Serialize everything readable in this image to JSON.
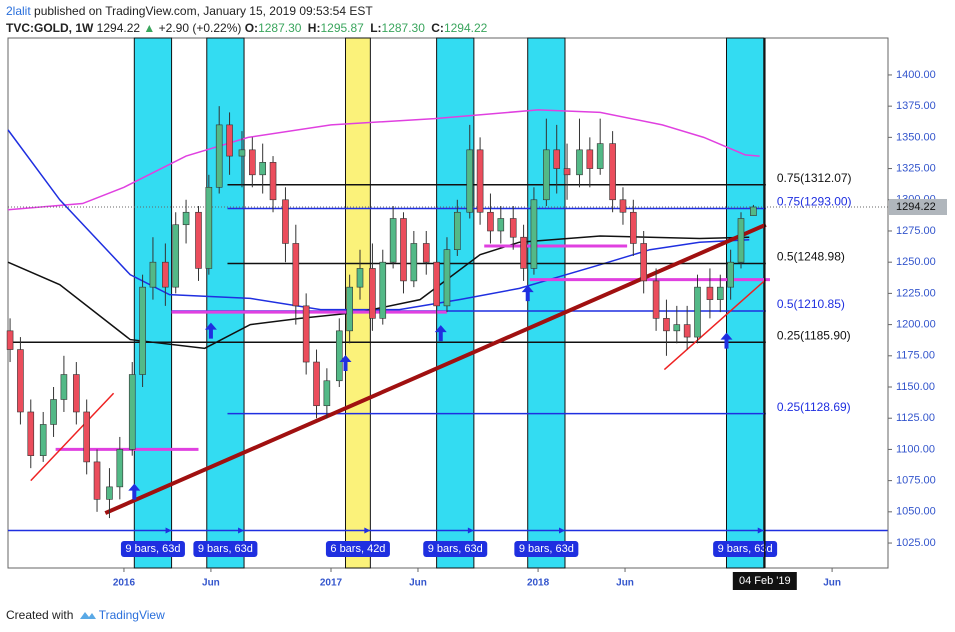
{
  "header": {
    "author": "2lalit",
    "published": "published on TradingView.com, January 15, 2019 09:53:54 EST",
    "symbol": "TVC:GOLD, 1W",
    "last": "1294.22",
    "arrow": "▲",
    "change": "+2.90 (+0.22%)",
    "ohlc": [
      {
        "label": "O:",
        "value": "1287.30"
      },
      {
        "label": "H:",
        "value": "1295.87"
      },
      {
        "label": "L:",
        "value": "1287.30"
      },
      {
        "label": "C:",
        "value": "1294.22"
      }
    ]
  },
  "footer": {
    "created_with": "Created with",
    "brand": "TradingView"
  },
  "chart_data": {
    "type": "candlestick",
    "xlim": [
      2015.44,
      2019.69
    ],
    "ylim": [
      1005,
      1429.6
    ],
    "xticks": [
      {
        "value": 2016,
        "label": "2016"
      },
      {
        "value": 2016.42,
        "label": "Jun"
      },
      {
        "value": 2017,
        "label": "2017"
      },
      {
        "value": 2017.42,
        "label": "Jun"
      },
      {
        "value": 2018,
        "label": "2018"
      },
      {
        "value": 2018.42,
        "label": "Jun"
      },
      {
        "value": 2019.42,
        "label": "Jun"
      }
    ],
    "yticks": [
      {
        "value": 1025,
        "label": "1025.00"
      },
      {
        "value": 1050,
        "label": "1050.00"
      },
      {
        "value": 1075,
        "label": "1075.00"
      },
      {
        "value": 1100,
        "label": "1100.00"
      },
      {
        "value": 1125,
        "label": "1125.00"
      },
      {
        "value": 1150,
        "label": "1150.00"
      },
      {
        "value": 1175,
        "label": "1175.00"
      },
      {
        "value": 1200,
        "label": "1200.00"
      },
      {
        "value": 1225,
        "label": "1225.00"
      },
      {
        "value": 1250,
        "label": "1250.00"
      },
      {
        "value": 1275,
        "label": "1275.00"
      },
      {
        "value": 1300,
        "label": "1300.00"
      },
      {
        "value": 1325,
        "label": "1325.00"
      },
      {
        "value": 1350,
        "label": "1350.00"
      },
      {
        "value": 1375,
        "label": "1375.00"
      },
      {
        "value": 1400,
        "label": "1400.00"
      }
    ],
    "up_color": "#53b987",
    "down_color": "#eb4d5c",
    "candles": [
      [
        2015.45,
        1195,
        1205,
        1170,
        1180
      ],
      [
        2015.5,
        1180,
        1190,
        1120,
        1130
      ],
      [
        2015.55,
        1130,
        1140,
        1085,
        1095
      ],
      [
        2015.61,
        1095,
        1130,
        1090,
        1120
      ],
      [
        2015.66,
        1120,
        1150,
        1110,
        1140
      ],
      [
        2015.71,
        1140,
        1175,
        1130,
        1160
      ],
      [
        2015.77,
        1160,
        1170,
        1120,
        1130
      ],
      [
        2015.82,
        1130,
        1140,
        1080,
        1090
      ],
      [
        2015.87,
        1090,
        1100,
        1050,
        1060
      ],
      [
        2015.93,
        1060,
        1085,
        1045,
        1070
      ],
      [
        2015.98,
        1070,
        1110,
        1060,
        1100
      ],
      [
        2016.04,
        1100,
        1170,
        1095,
        1160
      ],
      [
        2016.09,
        1160,
        1240,
        1150,
        1230
      ],
      [
        2016.14,
        1230,
        1270,
        1220,
        1250
      ],
      [
        2016.2,
        1250,
        1265,
        1215,
        1230
      ],
      [
        2016.25,
        1230,
        1290,
        1225,
        1280
      ],
      [
        2016.3,
        1280,
        1300,
        1265,
        1290
      ],
      [
        2016.36,
        1290,
        1295,
        1235,
        1245
      ],
      [
        2016.41,
        1245,
        1320,
        1240,
        1310
      ],
      [
        2016.46,
        1310,
        1375,
        1305,
        1360
      ],
      [
        2016.51,
        1360,
        1370,
        1320,
        1335
      ],
      [
        2016.57,
        1335,
        1355,
        1310,
        1340
      ],
      [
        2016.62,
        1340,
        1350,
        1310,
        1320
      ],
      [
        2016.67,
        1320,
        1345,
        1305,
        1330
      ],
      [
        2016.72,
        1330,
        1335,
        1290,
        1300
      ],
      [
        2016.78,
        1300,
        1310,
        1250,
        1265
      ],
      [
        2016.83,
        1265,
        1280,
        1200,
        1215
      ],
      [
        2016.88,
        1215,
        1225,
        1160,
        1170
      ],
      [
        2016.93,
        1170,
        1180,
        1125,
        1135
      ],
      [
        2016.98,
        1135,
        1165,
        1125,
        1155
      ],
      [
        2017.04,
        1155,
        1205,
        1150,
        1195
      ],
      [
        2017.09,
        1195,
        1240,
        1185,
        1230
      ],
      [
        2017.14,
        1230,
        1260,
        1220,
        1245
      ],
      [
        2017.2,
        1245,
        1265,
        1195,
        1205
      ],
      [
        2017.25,
        1205,
        1260,
        1200,
        1250
      ],
      [
        2017.3,
        1250,
        1295,
        1245,
        1285
      ],
      [
        2017.35,
        1285,
        1290,
        1225,
        1235
      ],
      [
        2017.4,
        1235,
        1275,
        1230,
        1265
      ],
      [
        2017.46,
        1265,
        1275,
        1240,
        1250
      ],
      [
        2017.51,
        1250,
        1260,
        1205,
        1215
      ],
      [
        2017.56,
        1215,
        1270,
        1210,
        1260
      ],
      [
        2017.61,
        1260,
        1300,
        1255,
        1290
      ],
      [
        2017.67,
        1290,
        1360,
        1285,
        1340
      ],
      [
        2017.72,
        1340,
        1350,
        1280,
        1290
      ],
      [
        2017.77,
        1290,
        1305,
        1265,
        1275
      ],
      [
        2017.82,
        1275,
        1295,
        1265,
        1285
      ],
      [
        2017.88,
        1285,
        1295,
        1260,
        1270
      ],
      [
        2017.93,
        1270,
        1280,
        1235,
        1245
      ],
      [
        2017.98,
        1245,
        1310,
        1240,
        1300
      ],
      [
        2018.04,
        1300,
        1365,
        1295,
        1340
      ],
      [
        2018.09,
        1340,
        1360,
        1305,
        1325
      ],
      [
        2018.14,
        1325,
        1345,
        1300,
        1320
      ],
      [
        2018.2,
        1320,
        1365,
        1310,
        1340
      ],
      [
        2018.25,
        1340,
        1350,
        1310,
        1325
      ],
      [
        2018.3,
        1325,
        1365,
        1320,
        1345
      ],
      [
        2018.36,
        1345,
        1355,
        1290,
        1300
      ],
      [
        2018.41,
        1300,
        1310,
        1280,
        1290
      ],
      [
        2018.46,
        1290,
        1300,
        1255,
        1265
      ],
      [
        2018.51,
        1265,
        1275,
        1225,
        1235
      ],
      [
        2018.57,
        1235,
        1245,
        1195,
        1205
      ],
      [
        2018.62,
        1205,
        1220,
        1175,
        1195
      ],
      [
        2018.67,
        1195,
        1215,
        1185,
        1200
      ],
      [
        2018.72,
        1200,
        1215,
        1180,
        1190
      ],
      [
        2018.77,
        1190,
        1240,
        1185,
        1230
      ],
      [
        2018.83,
        1230,
        1245,
        1205,
        1220
      ],
      [
        2018.88,
        1220,
        1240,
        1210,
        1230
      ],
      [
        2018.93,
        1230,
        1260,
        1220,
        1250
      ],
      [
        2018.98,
        1250,
        1290,
        1245,
        1285
      ],
      [
        2019.04,
        1287.3,
        1295.87,
        1287.3,
        1294.22
      ]
    ],
    "series": [
      {
        "color": "#e040e0",
        "x": [
          2015.44,
          2015.8,
          2016.0,
          2016.3,
          2016.6,
          2017.0,
          2017.5,
          2018.0,
          2018.3,
          2018.6,
          2018.8,
          2019.0,
          2019.07
        ],
        "values": [
          1292,
          1297,
          1310,
          1335,
          1350,
          1360,
          1365,
          1372,
          1370,
          1360,
          1350,
          1336,
          1335
        ]
      },
      {
        "color": "#1f2fe0",
        "x": [
          2015.44,
          2015.69,
          2016.03,
          2016.22,
          2016.61,
          2016.95,
          2017.33,
          2017.62,
          2017.91,
          2018.3,
          2018.54,
          2018.78,
          2019.02
        ],
        "values": [
          1356,
          1300,
          1240,
          1224,
          1221,
          1212,
          1212,
          1220,
          1229,
          1248,
          1260,
          1266,
          1268
        ]
      },
      {
        "color": "#111111",
        "x": [
          2015.44,
          2015.69,
          2016.03,
          2016.39,
          2016.61,
          2016.85,
          2017.14,
          2017.43,
          2017.72,
          2017.91,
          2018.3,
          2018.78,
          2019.02
        ],
        "values": [
          1250,
          1232,
          1188,
          1181,
          1200,
          1205,
          1210,
          1220,
          1256,
          1266,
          1271,
          1269,
          1270
        ]
      }
    ],
    "bands": [
      {
        "x": [
          2016.05,
          2016.23
        ],
        "color": "#33dcf2",
        "label": "9 bars, 63d"
      },
      {
        "x": [
          2016.4,
          2016.58
        ],
        "color": "#33dcf2",
        "label": "9 bars, 63d"
      },
      {
        "x": [
          2017.07,
          2017.19
        ],
        "color": "#fbf27a",
        "label": "6 bars, 42d"
      },
      {
        "x": [
          2017.51,
          2017.69
        ],
        "color": "#33dcf2",
        "label": "9 bars, 63d"
      },
      {
        "x": [
          2017.95,
          2018.13
        ],
        "color": "#33dcf2",
        "label": "9 bars, 63d"
      },
      {
        "x": [
          2018.91,
          2019.09
        ],
        "color": "#33dcf2",
        "label": "9 bars, 63d"
      }
    ],
    "base_line": {
      "value": 1035,
      "color": "#1f2fe0"
    },
    "marker_lines": [
      {
        "value": 1100,
        "x": [
          2015.67,
          2016.36
        ],
        "color": "#e040e0"
      },
      {
        "value": 1210,
        "x": [
          2016.23,
          2017.56
        ],
        "color": "#e040e0"
      },
      {
        "value": 1263,
        "x": [
          2017.74,
          2018.43
        ],
        "color": "#e040e0"
      },
      {
        "value": 1236,
        "x": [
          2017.96,
          2019.12
        ],
        "color": "#e040e0"
      }
    ],
    "levels": [
      {
        "label": "0.75(1312.07)",
        "value": 1312.07,
        "x": [
          2016.5,
          2019.1
        ],
        "color": "#111111"
      },
      {
        "label": "0.75(1293.00)",
        "value": 1293.0,
        "x": [
          2016.5,
          2019.1
        ],
        "color": "#1f2fe0"
      },
      {
        "label": "0.5(1248.98)",
        "value": 1248.98,
        "x": [
          2016.5,
          2019.1
        ],
        "color": "#111111"
      },
      {
        "label": "0.5(1210.85)",
        "value": 1210.85,
        "x": [
          2016.23,
          2019.1
        ],
        "color": "#1f2fe0"
      },
      {
        "label": "0.25(1185.90)",
        "value": 1185.9,
        "x": [
          2015.44,
          2019.1
        ],
        "color": "#111111"
      },
      {
        "label": "0.25(1128.69)",
        "value": 1128.69,
        "x": [
          2016.5,
          2019.1
        ],
        "color": "#1f2fe0"
      }
    ],
    "main_trend": {
      "x": [
        2015.91,
        2019.1
      ],
      "y": [
        1049,
        1280
      ],
      "color": "#a01010"
    },
    "trend_lines": [
      {
        "x": [
          2015.55,
          2015.95
        ],
        "y": [
          1075,
          1145
        ],
        "color": "#ee2222"
      },
      {
        "x": [
          2018.61,
          2019.1
        ],
        "y": [
          1164,
          1236
        ],
        "color": "#ee2222"
      }
    ],
    "arrows": [
      {
        "x": 2016.05,
        "y": 1075
      },
      {
        "x": 2016.42,
        "y": 1204
      },
      {
        "x": 2017.07,
        "y": 1178
      },
      {
        "x": 2017.53,
        "y": 1202
      },
      {
        "x": 2017.95,
        "y": 1234
      },
      {
        "x": 2018.91,
        "y": 1196
      }
    ],
    "arrow_color": "#1f2fe0",
    "last_price": {
      "value": 1294.22,
      "label": "1294.22"
    },
    "cursor": {
      "value": 2019.095,
      "label": "04 Feb '19"
    }
  }
}
